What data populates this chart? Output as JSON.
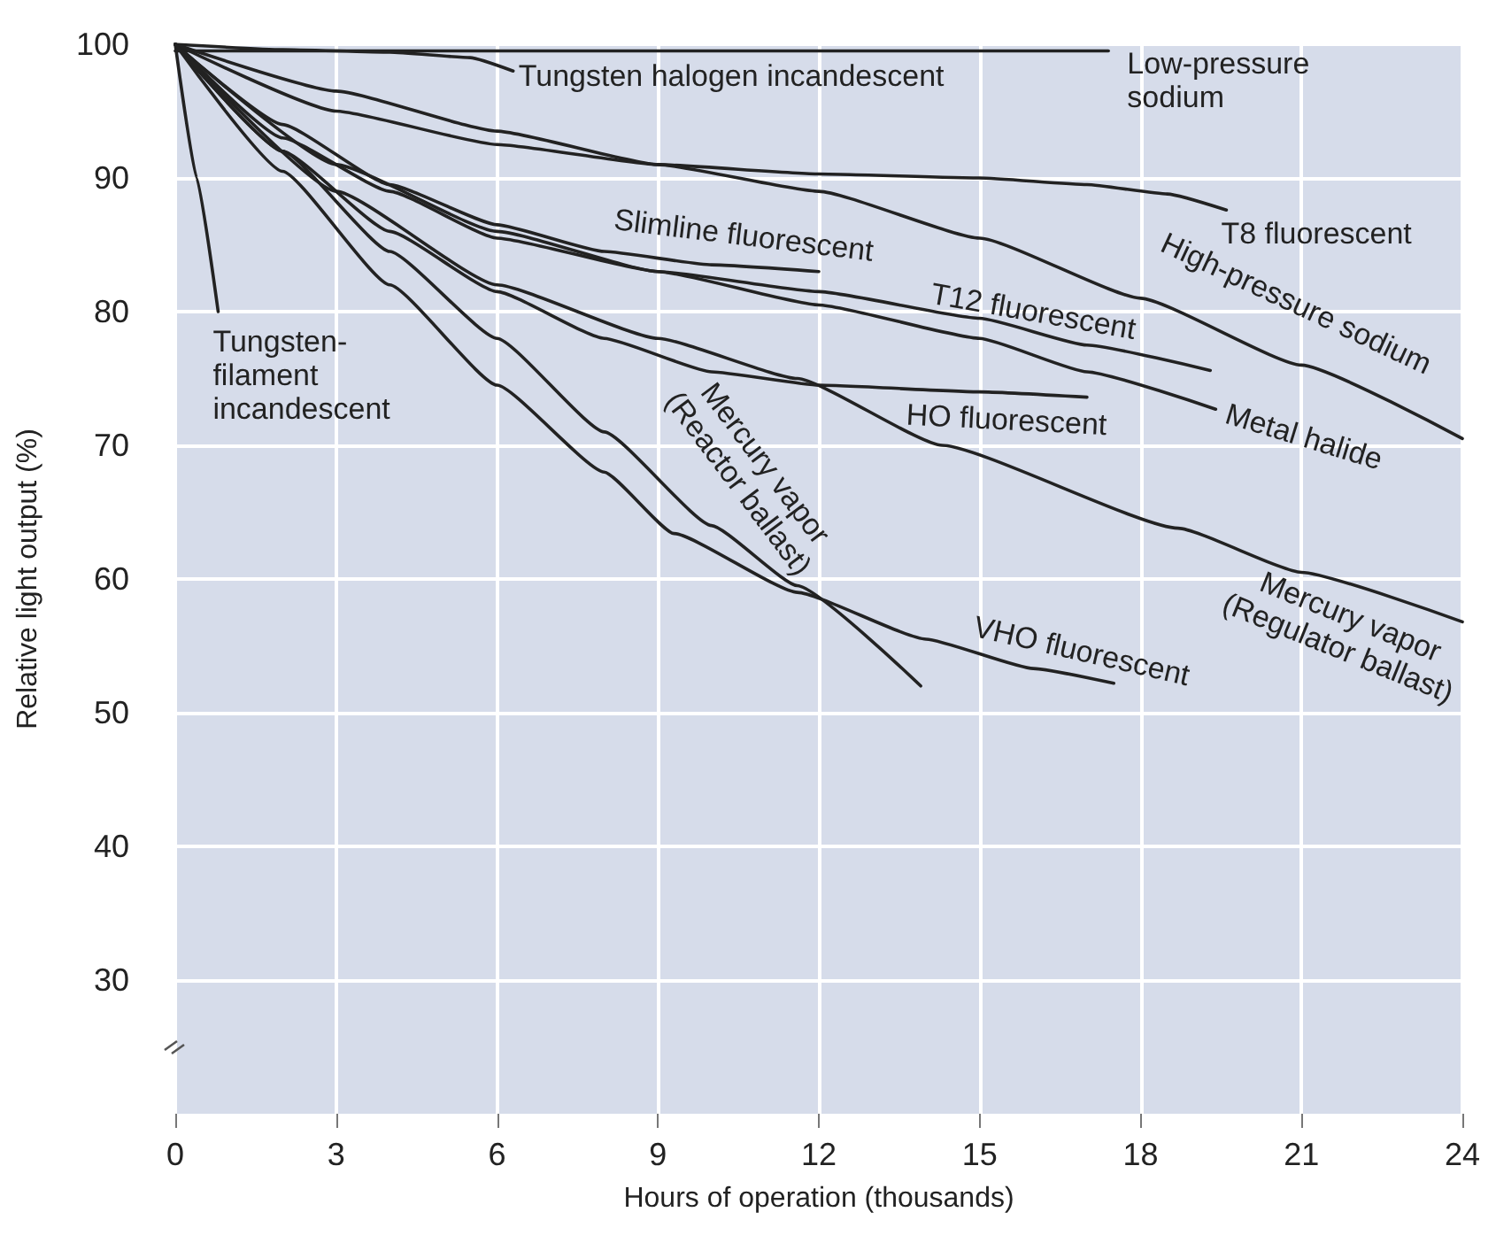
{
  "chart_data": {
    "type": "line",
    "xlabel": "Hours of operation (thousands)",
    "ylabel": "Relative light output (%)",
    "xlim": [
      0,
      24
    ],
    "xticks": [
      0,
      3,
      6,
      9,
      12,
      15,
      18,
      21,
      24
    ],
    "ylim": [
      20,
      100
    ],
    "yticks": [
      30,
      40,
      50,
      60,
      70,
      80,
      90,
      100
    ],
    "grid": true,
    "legend": false,
    "marker": "none",
    "line_style": "solid",
    "series": [
      {
        "name": "Tungsten-\nfilament\nincandescent",
        "color": "#222222",
        "x": [
          0,
          0.4,
          0.8
        ],
        "values": [
          100,
          90,
          80
        ]
      },
      {
        "name": "Tungsten halogen incandescent",
        "color": "#222222",
        "x": [
          0,
          2,
          4,
          5.5,
          6.3
        ],
        "values": [
          100,
          99.6,
          99.4,
          99,
          98
        ]
      },
      {
        "name": "Low-pressure\nsodium",
        "color": "#222222",
        "x": [
          0,
          17.4
        ],
        "values": [
          99.5,
          99.5
        ]
      },
      {
        "name": "T8 fluorescent",
        "color": "#222222",
        "x": [
          0,
          3,
          6,
          9,
          12,
          15,
          17,
          18.5,
          19.6
        ],
        "values": [
          100,
          95,
          92.5,
          91,
          90.3,
          90,
          89.5,
          88.8,
          87.6
        ]
      },
      {
        "name": "Slimline fluorescent",
        "color": "#222222",
        "x": [
          0,
          2,
          4,
          6,
          8,
          10,
          12
        ],
        "values": [
          100,
          94,
          89.5,
          86.5,
          84.5,
          83.5,
          83
        ]
      },
      {
        "name": "T12 fluorescent",
        "color": "#222222",
        "x": [
          0,
          2,
          4,
          6,
          9,
          12,
          15,
          17,
          19.3
        ],
        "values": [
          100,
          93,
          89,
          85.5,
          83,
          81.5,
          79.5,
          77.5,
          75.6
        ]
      },
      {
        "name": "High-pressure sodium",
        "color": "#222222",
        "x": [
          0,
          3,
          6,
          9,
          12,
          15,
          18,
          21,
          24
        ],
        "values": [
          100,
          96.5,
          93.5,
          91,
          89,
          85.5,
          81,
          76,
          70.5
        ]
      },
      {
        "name": "Metal halide",
        "color": "#222222",
        "x": [
          0,
          3,
          6,
          9,
          12,
          15,
          17,
          19.4
        ],
        "values": [
          100,
          91,
          86,
          83,
          80.5,
          78,
          75.5,
          72.7
        ]
      },
      {
        "name": "HO fluorescent",
        "color": "#222222",
        "x": [
          0,
          2,
          4,
          6,
          8,
          10,
          12,
          15,
          17
        ],
        "values": [
          100,
          92,
          86,
          81.5,
          78,
          75.5,
          74.5,
          74,
          73.6
        ]
      },
      {
        "name": "Mercury vapor\n(Reactor ballast)",
        "color": "#222222",
        "x": [
          0,
          2,
          4,
          6,
          8,
          10,
          11.6,
          13.9
        ],
        "values": [
          100,
          92,
          84.5,
          78,
          71,
          64,
          59.5,
          52
        ]
      },
      {
        "name": "Mercury vapor\n(Regulator ballast)",
        "color": "#222222",
        "x": [
          0,
          3,
          6,
          9,
          11.6,
          14.3,
          18.7,
          21,
          24
        ],
        "values": [
          100,
          89,
          82,
          78,
          75,
          70,
          63.8,
          60.5,
          56.8
        ]
      },
      {
        "name": "VHO fluorescent",
        "color": "#222222",
        "x": [
          0,
          2,
          4,
          6,
          8,
          9.3,
          11.6,
          14,
          16,
          17.5
        ],
        "values": [
          100,
          90.5,
          82,
          74.5,
          68,
          63.4,
          59,
          55.5,
          53.3,
          52.2
        ]
      }
    ]
  }
}
